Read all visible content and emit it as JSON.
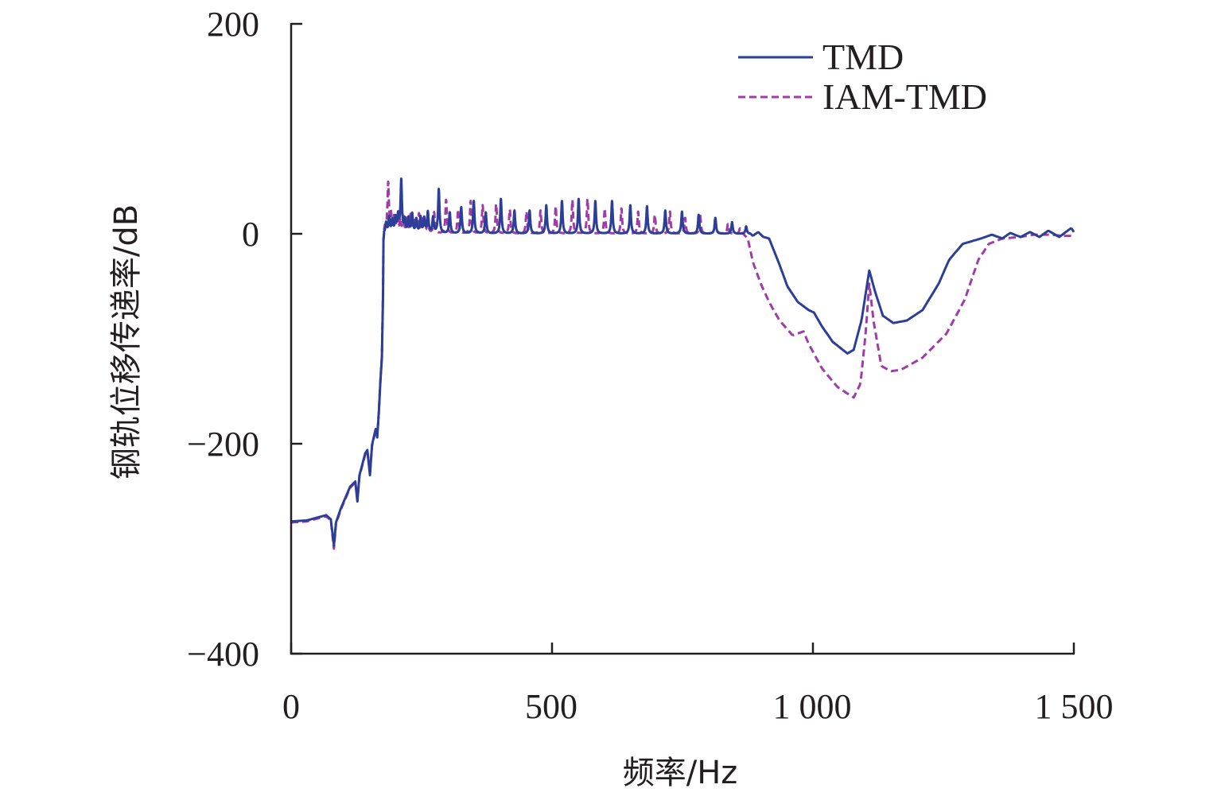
{
  "chart_data": {
    "type": "line",
    "title": "",
    "xlabel": "频率/Hz",
    "ylabel": "钢轨位移传递率/dB",
    "xlim": [
      0,
      1500
    ],
    "ylim": [
      -400,
      200
    ],
    "x_ticks": [
      0,
      500,
      1000,
      1500
    ],
    "x_tick_labels": [
      "0",
      "500",
      "1 000",
      "1 500"
    ],
    "y_ticks": [
      -400,
      -200,
      0,
      200
    ],
    "y_tick_labels": [
      "−400",
      "−200",
      "0",
      "200"
    ],
    "grid": false,
    "legend_position": "top-right",
    "series": [
      {
        "name": "TMD",
        "color": "#2b3f98",
        "dash": "solid",
        "points": [
          [
            0,
            -274
          ],
          [
            30,
            -273
          ],
          [
            67,
            -268
          ],
          [
            76,
            -272
          ],
          [
            82,
            -297
          ],
          [
            86,
            -275
          ],
          [
            95,
            -262
          ],
          [
            113,
            -241
          ],
          [
            123,
            -236
          ],
          [
            127,
            -255
          ],
          [
            131,
            -230
          ],
          [
            142,
            -209
          ],
          [
            146,
            -206
          ],
          [
            151,
            -230
          ],
          [
            155,
            -201
          ],
          [
            162,
            -186
          ],
          [
            165,
            -194
          ],
          [
            168,
            -171
          ],
          [
            171,
            -141
          ],
          [
            174,
            -118
          ],
          [
            176,
            -60
          ],
          [
            177,
            -5
          ],
          [
            178,
            0
          ],
          [
            880,
            0
          ],
          [
            885,
            -2
          ],
          [
            895,
            1.7
          ],
          [
            905,
            -3
          ],
          [
            916,
            -4.5
          ],
          [
            936,
            -29.5
          ],
          [
            951,
            -50
          ],
          [
            971,
            -65
          ],
          [
            992,
            -72.7
          ],
          [
            1002,
            -75
          ],
          [
            1017,
            -88
          ],
          [
            1038,
            -103
          ],
          [
            1066,
            -114
          ],
          [
            1078,
            -110.6
          ],
          [
            1093,
            -82.6
          ],
          [
            1108,
            -35
          ],
          [
            1119,
            -55
          ],
          [
            1134,
            -78
          ],
          [
            1154,
            -85
          ],
          [
            1180,
            -82.6
          ],
          [
            1210,
            -72.7
          ],
          [
            1241,
            -47.5
          ],
          [
            1261,
            -24.8
          ],
          [
            1287,
            -9.6
          ],
          [
            1322,
            -4.5
          ],
          [
            1343,
            -0.8
          ],
          [
            1363,
            -4.5
          ],
          [
            1378,
            0.8
          ],
          [
            1398,
            -3
          ],
          [
            1416,
            1.7
          ],
          [
            1434,
            -3
          ],
          [
            1451,
            3
          ],
          [
            1472,
            -3
          ],
          [
            1495,
            5.5
          ],
          [
            1500,
            1.7
          ]
        ],
        "resonance_peaks": [
          [
            182,
            10
          ],
          [
            188,
            15
          ],
          [
            194,
            12
          ],
          [
            200,
            14
          ],
          [
            205,
            16
          ],
          [
            211,
            50
          ],
          [
            218,
            12
          ],
          [
            225,
            14
          ],
          [
            232,
            18
          ],
          [
            240,
            13
          ],
          [
            248,
            15
          ],
          [
            255,
            14
          ],
          [
            262,
            20
          ],
          [
            272,
            15
          ],
          [
            283,
            42
          ],
          [
            304,
            20
          ],
          [
            326,
            25
          ],
          [
            350,
            31
          ],
          [
            373,
            20
          ],
          [
            402,
            33
          ],
          [
            428,
            22
          ],
          [
            457,
            22
          ],
          [
            489,
            27
          ],
          [
            519,
            31
          ],
          [
            551,
            33
          ],
          [
            583,
            31
          ],
          [
            615,
            31
          ],
          [
            650,
            27
          ],
          [
            682,
            26
          ],
          [
            717,
            22
          ],
          [
            749,
            21
          ],
          [
            781,
            18
          ],
          [
            813,
            15
          ],
          [
            845,
            11
          ],
          [
            872,
            7
          ]
        ]
      },
      {
        "name": "IAM-TMD",
        "color": "#a03ca8",
        "dash": "dashed",
        "points": [
          [
            0,
            -275
          ],
          [
            30,
            -274
          ],
          [
            67,
            -269
          ],
          [
            76,
            -273
          ],
          [
            82,
            -300
          ],
          [
            86,
            -276
          ],
          [
            95,
            -263
          ],
          [
            113,
            -242
          ],
          [
            123,
            -237
          ],
          [
            127,
            -254
          ],
          [
            131,
            -231
          ],
          [
            142,
            -210
          ],
          [
            146,
            -207
          ],
          [
            151,
            -228
          ],
          [
            155,
            -202
          ],
          [
            162,
            -187
          ],
          [
            165,
            -193
          ],
          [
            168,
            -170
          ],
          [
            171,
            -140
          ],
          [
            174,
            -116
          ],
          [
            176,
            -55
          ],
          [
            177,
            -5
          ],
          [
            178,
            0
          ],
          [
            866,
            0
          ],
          [
            875,
            -4.5
          ],
          [
            885,
            -27
          ],
          [
            900,
            -47.5
          ],
          [
            916,
            -65
          ],
          [
            936,
            -82.6
          ],
          [
            961,
            -96.7
          ],
          [
            982,
            -93
          ],
          [
            992,
            -105
          ],
          [
            1017,
            -128
          ],
          [
            1047,
            -146
          ],
          [
            1078,
            -156
          ],
          [
            1091,
            -143
          ],
          [
            1101,
            -95
          ],
          [
            1108,
            -47.5
          ],
          [
            1116,
            -82.6
          ],
          [
            1131,
            -125.8
          ],
          [
            1149,
            -131
          ],
          [
            1169,
            -129.5
          ],
          [
            1210,
            -118
          ],
          [
            1256,
            -95
          ],
          [
            1291,
            -62.6
          ],
          [
            1317,
            -24.8
          ],
          [
            1337,
            -9.6
          ],
          [
            1363,
            -4.5
          ],
          [
            1398,
            -3
          ],
          [
            1424,
            -0.8
          ],
          [
            1454,
            -0.8
          ],
          [
            1480,
            -2
          ],
          [
            1500,
            -2
          ]
        ],
        "resonance_peaks": [
          [
            180,
            5
          ],
          [
            186,
            47
          ],
          [
            191,
            18
          ],
          [
            197,
            14
          ],
          [
            203,
            16
          ],
          [
            209,
            12
          ],
          [
            215,
            15
          ],
          [
            222,
            13
          ],
          [
            229,
            17
          ],
          [
            237,
            14
          ],
          [
            245,
            18
          ],
          [
            253,
            15
          ],
          [
            262,
            14
          ],
          [
            274,
            20
          ],
          [
            297,
            32
          ],
          [
            320,
            23
          ],
          [
            344,
            31
          ],
          [
            367,
            27
          ],
          [
            393,
            28
          ],
          [
            419,
            23
          ],
          [
            451,
            21
          ],
          [
            478,
            22
          ],
          [
            507,
            26
          ],
          [
            539,
            32
          ],
          [
            568,
            33
          ],
          [
            601,
            24
          ],
          [
            633,
            24
          ],
          [
            665,
            21
          ],
          [
            697,
            18
          ],
          [
            726,
            21
          ],
          [
            755,
            15
          ],
          [
            784,
            17
          ],
          [
            813,
            15
          ],
          [
            837,
            9
          ],
          [
            860,
            5
          ]
        ]
      }
    ]
  }
}
